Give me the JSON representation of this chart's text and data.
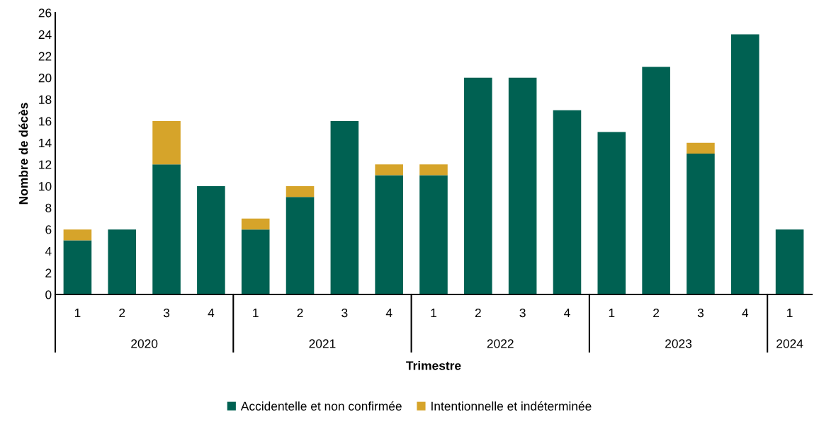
{
  "chart_data": {
    "type": "bar",
    "stacked": true,
    "xlabel": "Trimestre",
    "ylabel": "Nombre de décès",
    "categories": [
      "1",
      "2",
      "3",
      "4",
      "1",
      "2",
      "3",
      "4",
      "1",
      "2",
      "3",
      "4",
      "1",
      "2",
      "3",
      "4",
      "1"
    ],
    "series": [
      {
        "name": "Accidentelle et non confirmée",
        "color": "#006152",
        "values": [
          5,
          6,
          12,
          10,
          6,
          9,
          16,
          11,
          11,
          20,
          20,
          17,
          15,
          21,
          13,
          24,
          6
        ]
      },
      {
        "name": "Intentionnelle et indéterminée",
        "color": "#d6a42a",
        "values": [
          1,
          null,
          4,
          null,
          1,
          1,
          null,
          1,
          1,
          null,
          null,
          null,
          null,
          null,
          1,
          null,
          null
        ]
      }
    ],
    "annotations": [
      "2020",
      "2021",
      "2022",
      "2023",
      "2024"
    ],
    "ylim": [
      0,
      26
    ],
    "yticks": [
      0,
      2,
      4,
      6,
      8,
      10,
      12,
      14,
      16,
      18,
      20,
      22,
      24,
      26
    ],
    "grid": false,
    "legend": "bottom"
  }
}
